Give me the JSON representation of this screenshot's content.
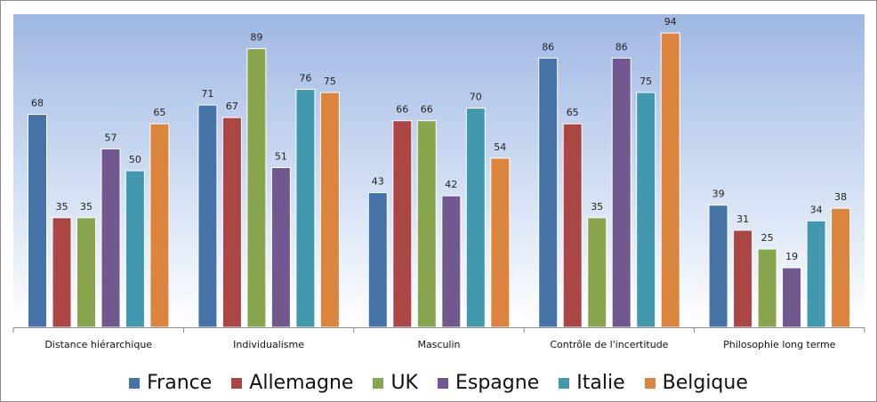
{
  "chart_data": {
    "type": "bar",
    "title": "",
    "xlabel": "",
    "ylabel": "",
    "ylim": [
      0,
      100
    ],
    "grid": false,
    "legend_position": "bottom",
    "categories": [
      "Distance hiérarchique",
      "Individualisme",
      "Masculin",
      "Contrôle de l'incertitude",
      "Philosophie long terme"
    ],
    "series": [
      {
        "name": "France",
        "color": "#4572A7",
        "values": [
          68,
          71,
          43,
          86,
          39
        ]
      },
      {
        "name": "Allemagne",
        "color": "#AA4643",
        "values": [
          35,
          67,
          66,
          65,
          31
        ]
      },
      {
        "name": "UK",
        "color": "#89A54E",
        "values": [
          35,
          89,
          66,
          35,
          25
        ]
      },
      {
        "name": "Espagne",
        "color": "#71588F",
        "values": [
          57,
          51,
          42,
          86,
          19
        ]
      },
      {
        "name": "Italie",
        "color": "#4198AF",
        "values": [
          50,
          76,
          70,
          75,
          34
        ]
      },
      {
        "name": "Belgique",
        "color": "#DB843D",
        "values": [
          65,
          75,
          54,
          94,
          38
        ]
      }
    ]
  }
}
